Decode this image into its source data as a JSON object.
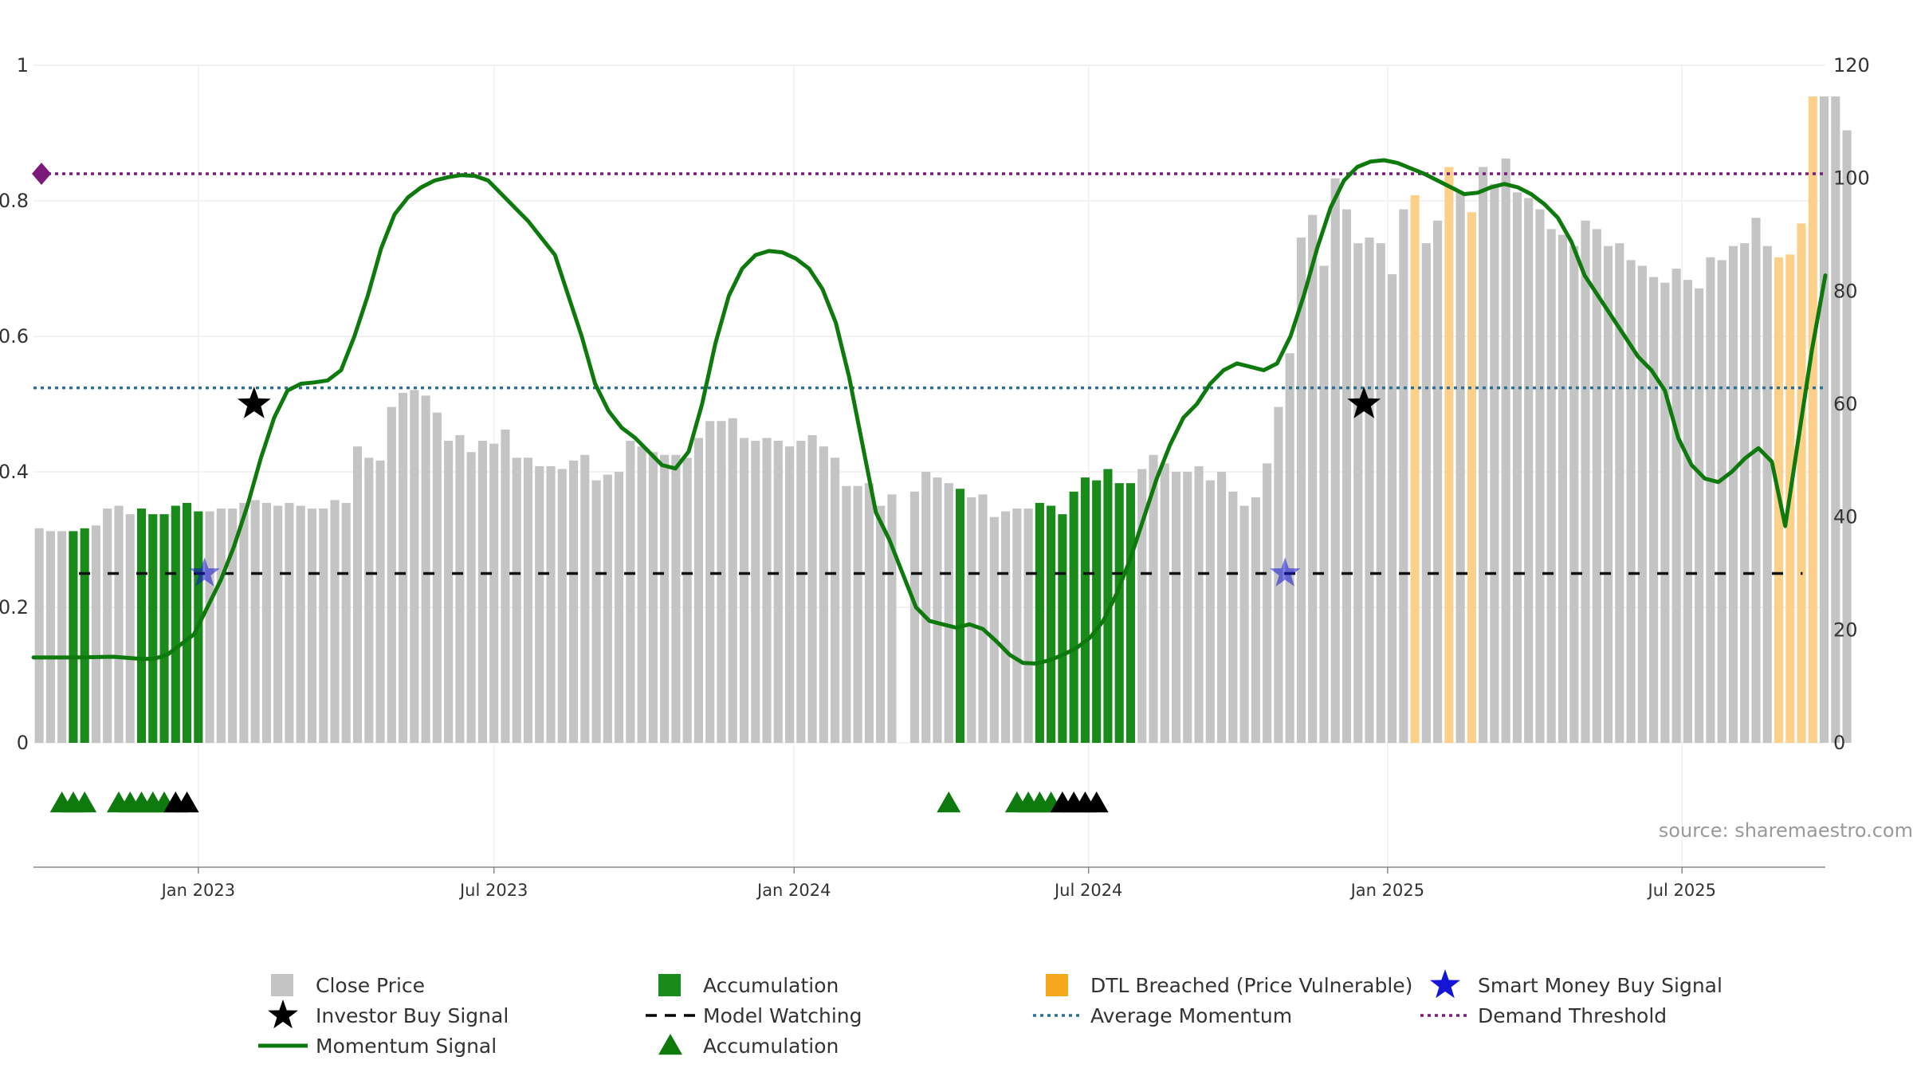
{
  "chart_data": {
    "type": "bar",
    "source_note": "source: sharemaestro.com",
    "left_axis": {
      "ticks": [
        "0",
        "0.2",
        "0.4",
        "0.6",
        "0.8",
        "1"
      ],
      "range": [
        0,
        1
      ]
    },
    "right_axis": {
      "ticks": [
        "0",
        "20",
        "40",
        "60",
        "80",
        "100",
        "120"
      ],
      "range": [
        0,
        120
      ]
    },
    "x_ticks": [
      {
        "label": "Jan 2023",
        "week": 14
      },
      {
        "label": "Jul 2023",
        "week": 40
      },
      {
        "label": "Jan 2024",
        "week": 66.4
      },
      {
        "label": "Jul 2024",
        "week": 92.3
      },
      {
        "label": "Jan 2025",
        "week": 118.6
      },
      {
        "label": "Jul 2025",
        "week": 144.5
      }
    ],
    "weeks": 158,
    "close_price": [
      38,
      37.5,
      37.5,
      37.5,
      38,
      38.5,
      41.5,
      42,
      40.5,
      41.5,
      40.5,
      40.5,
      42,
      42.5,
      41,
      41,
      41.5,
      41.5,
      42.5,
      43,
      42.5,
      42,
      42.5,
      42,
      41.5,
      41.5,
      43,
      42.5,
      52.5,
      50.5,
      50,
      59.5,
      62,
      62.5,
      61.5,
      58.5,
      53.5,
      54.5,
      51.5,
      53.5,
      53,
      55.5,
      50.5,
      50.5,
      49,
      49,
      48.5,
      50,
      51,
      46.5,
      47.5,
      48,
      53.5,
      52.5,
      51.5,
      51,
      51,
      50.5,
      54,
      57,
      57,
      57.5,
      54,
      53.5,
      54,
      53.5,
      52.5,
      53.5,
      54.5,
      52.5,
      50.5,
      45.5,
      45.5,
      46,
      42,
      44,
      0,
      44.5,
      48,
      47,
      46,
      45,
      43.5,
      44,
      40,
      41,
      41.5,
      41.5,
      42.5,
      42,
      40.5,
      44.5,
      47,
      46.5,
      48.5,
      46,
      46,
      48.5,
      51,
      49.5,
      48,
      48,
      49,
      46.5,
      48,
      44.5,
      42,
      43.5,
      49.5,
      59.5,
      69,
      89.5,
      93.5,
      84.5,
      100,
      94.5,
      88.5,
      89.5,
      88.5,
      83,
      94.5,
      97,
      88.5,
      92.5,
      102,
      97.5,
      94,
      102,
      99,
      103.5,
      97.5,
      96.5,
      94.5,
      91,
      90,
      88,
      92.5,
      91,
      88,
      88.5,
      85.5,
      84.5,
      82.5,
      81.5,
      84,
      82,
      80.5,
      86,
      85.5,
      88,
      88.5,
      93,
      88,
      86,
      86.5,
      92,
      114.5,
      114.5,
      114.5,
      108.5
    ],
    "accumulation_weeks": [
      3,
      4,
      9,
      10,
      11,
      12,
      13,
      14,
      81,
      88,
      89,
      90,
      91,
      92,
      93,
      94,
      95,
      96
    ],
    "dtl_breached_weeks": [
      121,
      124,
      126,
      153,
      154,
      155,
      156
    ],
    "momentum_signal": [
      [
        0,
        0.126
      ],
      [
        3,
        0.126
      ],
      [
        6,
        0.127
      ],
      [
        8,
        0.124
      ],
      [
        9,
        0.124
      ],
      [
        10,
        0.13
      ],
      [
        12,
        0.16
      ],
      [
        13,
        0.2
      ],
      [
        14,
        0.24
      ],
      [
        15,
        0.29
      ],
      [
        16,
        0.35
      ],
      [
        17,
        0.42
      ],
      [
        18,
        0.48
      ],
      [
        19,
        0.52
      ],
      [
        20,
        0.53
      ],
      [
        21,
        0.532
      ],
      [
        22,
        0.535
      ],
      [
        23,
        0.55
      ],
      [
        24,
        0.6
      ],
      [
        25,
        0.66
      ],
      [
        26,
        0.73
      ],
      [
        27,
        0.78
      ],
      [
        28,
        0.805
      ],
      [
        29,
        0.82
      ],
      [
        30,
        0.83
      ],
      [
        31,
        0.835
      ],
      [
        32,
        0.838
      ],
      [
        33,
        0.837
      ],
      [
        34,
        0.83
      ],
      [
        35,
        0.81
      ],
      [
        36,
        0.79
      ],
      [
        37,
        0.77
      ],
      [
        38,
        0.745
      ],
      [
        39,
        0.72
      ],
      [
        40,
        0.66
      ],
      [
        41,
        0.6
      ],
      [
        42,
        0.53
      ],
      [
        43,
        0.49
      ],
      [
        44,
        0.465
      ],
      [
        45,
        0.45
      ],
      [
        46,
        0.43
      ],
      [
        47,
        0.41
      ],
      [
        48,
        0.405
      ],
      [
        49,
        0.43
      ],
      [
        50,
        0.5
      ],
      [
        51,
        0.59
      ],
      [
        52,
        0.66
      ],
      [
        53,
        0.7
      ],
      [
        54,
        0.72
      ],
      [
        55,
        0.726
      ],
      [
        56,
        0.724
      ],
      [
        57,
        0.715
      ],
      [
        58,
        0.7
      ],
      [
        59,
        0.67
      ],
      [
        60,
        0.62
      ],
      [
        61,
        0.54
      ],
      [
        62,
        0.44
      ],
      [
        63,
        0.34
      ],
      [
        64,
        0.3
      ],
      [
        65,
        0.25
      ],
      [
        66,
        0.2
      ],
      [
        67,
        0.18
      ],
      [
        68,
        0.175
      ],
      [
        69,
        0.17
      ],
      [
        70,
        0.175
      ],
      [
        71,
        0.168
      ],
      [
        72,
        0.15
      ],
      [
        73,
        0.13
      ],
      [
        74,
        0.118
      ],
      [
        75,
        0.117
      ],
      [
        76,
        0.122
      ],
      [
        77,
        0.13
      ],
      [
        78,
        0.14
      ],
      [
        79,
        0.155
      ],
      [
        80,
        0.18
      ],
      [
        81,
        0.22
      ],
      [
        82,
        0.27
      ],
      [
        83,
        0.33
      ],
      [
        84,
        0.39
      ],
      [
        85,
        0.44
      ],
      [
        86,
        0.48
      ],
      [
        87,
        0.5
      ],
      [
        88,
        0.53
      ],
      [
        89,
        0.55
      ],
      [
        90,
        0.56
      ],
      [
        91,
        0.555
      ],
      [
        92,
        0.55
      ],
      [
        93,
        0.56
      ],
      [
        94,
        0.6
      ],
      [
        95,
        0.66
      ],
      [
        96,
        0.73
      ],
      [
        97,
        0.79
      ],
      [
        98,
        0.83
      ],
      [
        99,
        0.85
      ],
      [
        100,
        0.858
      ],
      [
        101,
        0.86
      ],
      [
        102,
        0.856
      ],
      [
        103,
        0.848
      ],
      [
        104,
        0.84
      ],
      [
        105,
        0.83
      ],
      [
        106,
        0.82
      ],
      [
        107,
        0.81
      ],
      [
        108,
        0.812
      ],
      [
        109,
        0.82
      ],
      [
        110,
        0.825
      ],
      [
        111,
        0.82
      ],
      [
        112,
        0.81
      ],
      [
        113,
        0.795
      ],
      [
        114,
        0.775
      ],
      [
        115,
        0.74
      ],
      [
        116,
        0.69
      ],
      [
        117,
        0.66
      ],
      [
        118,
        0.63
      ],
      [
        119,
        0.6
      ],
      [
        120,
        0.57
      ],
      [
        121,
        0.55
      ],
      [
        122,
        0.52
      ],
      [
        123,
        0.45
      ],
      [
        124,
        0.41
      ],
      [
        125,
        0.39
      ],
      [
        126,
        0.385
      ],
      [
        127,
        0.4
      ],
      [
        128,
        0.42
      ],
      [
        129,
        0.435
      ],
      [
        130,
        0.415
      ],
      [
        131,
        0.32
      ],
      [
        132,
        0.45
      ],
      [
        133,
        0.58
      ],
      [
        134,
        0.69
      ]
    ],
    "investor_buy_signals": [
      [
        16.5,
        0.5
      ],
      [
        99.5,
        0.5
      ]
    ],
    "smart_money_buy_signals": [
      [
        12.8,
        0.25
      ],
      [
        93.6,
        0.25
      ]
    ],
    "model_watching_level": 0.25,
    "average_momentum_level": 0.524,
    "demand_threshold_level": 0.84,
    "accumulation_markers_green": [
      2,
      3,
      4,
      7,
      8,
      9,
      10,
      11,
      80,
      86,
      87,
      88,
      89
    ],
    "accumulation_markers_black": [
      12,
      13,
      90,
      91,
      92,
      93
    ],
    "legend": [
      {
        "key": "close",
        "label": "Close Price"
      },
      {
        "key": "accum_bar",
        "label": "Accumulation"
      },
      {
        "key": "dtl",
        "label": "DTL Breached (Price Vulnerable)"
      },
      {
        "key": "smart",
        "label": "Smart Money Buy Signal"
      },
      {
        "key": "investor",
        "label": "Investor Buy Signal"
      },
      {
        "key": "watching",
        "label": "Model Watching"
      },
      {
        "key": "avg",
        "label": "Average Momentum"
      },
      {
        "key": "demand",
        "label": "Demand Threshold"
      },
      {
        "key": "momentum",
        "label": "Momentum Signal"
      },
      {
        "key": "accum_tri",
        "label": "Accumulation"
      }
    ],
    "colors": {
      "close": "#c4c4c4",
      "accumulation": "#1a8a1a",
      "dtl": "#fdd08a",
      "momentum": "#0e7a0e",
      "average": "#2b6f96",
      "demand": "#7a1a7a",
      "smart": "#1515d6",
      "black": "#000000"
    }
  }
}
